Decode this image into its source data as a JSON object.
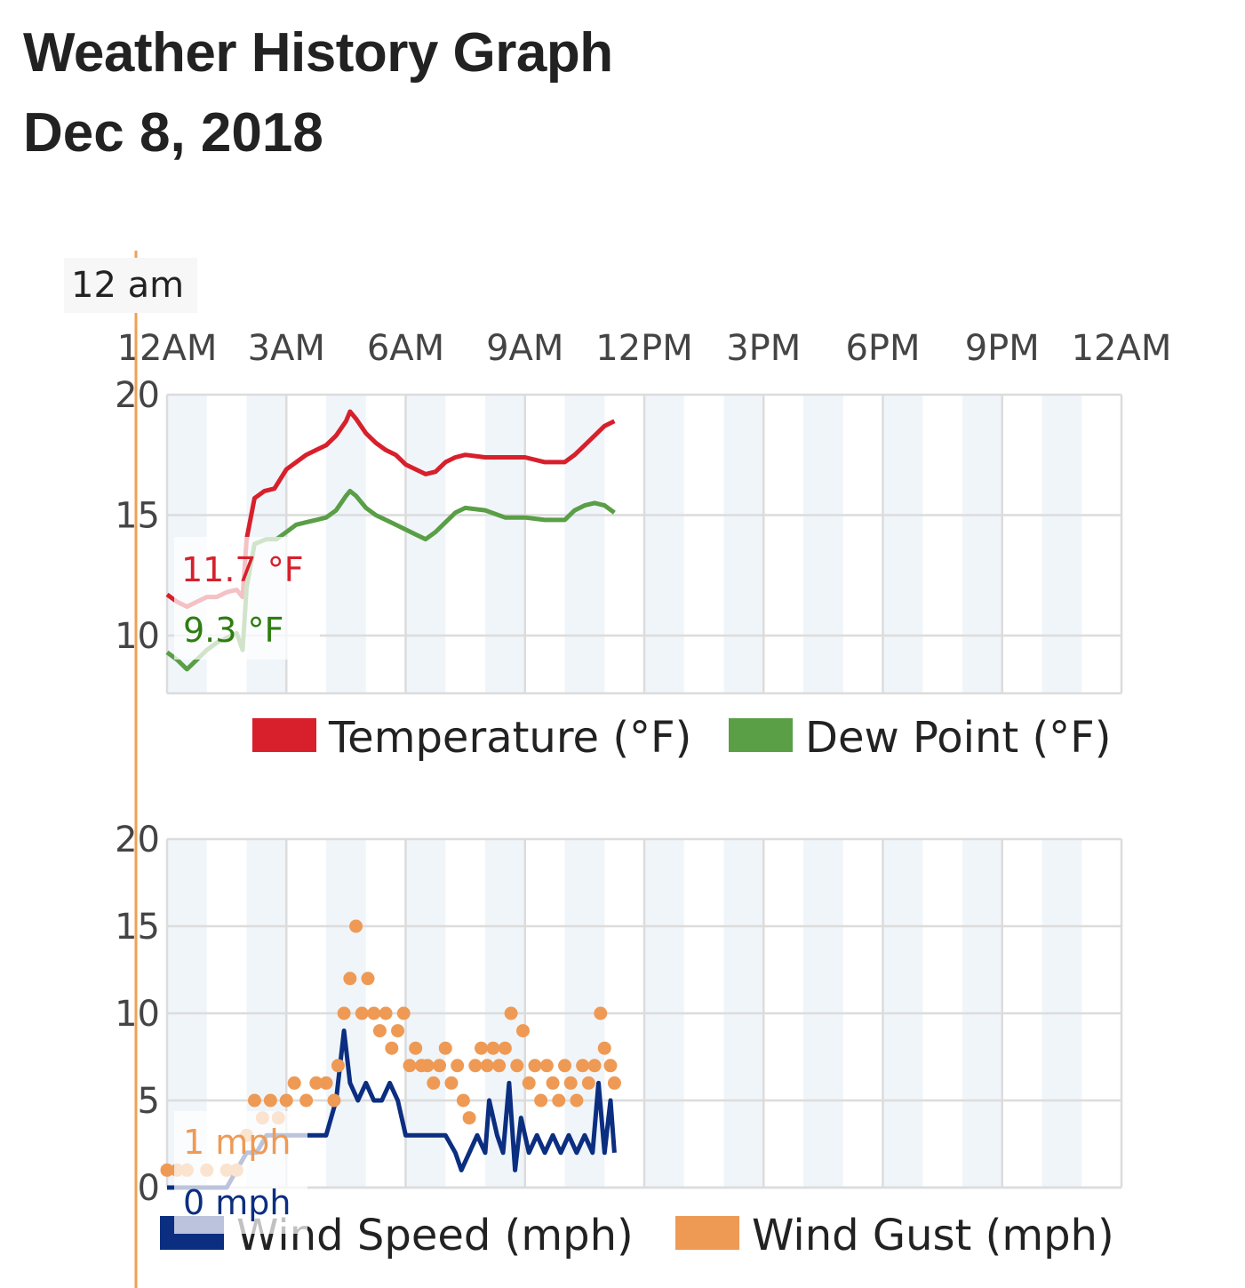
{
  "page": {
    "title": "Weather History Graph",
    "date": "Dec 8, 2018"
  },
  "hover": {
    "time_label": "12 am",
    "temperature_label": "11.7 °F",
    "dew_point_label": "9.3 °F",
    "wind_gust_label": "1 mph",
    "wind_speed_label": "0 mph"
  },
  "colors": {
    "temperature": "#d7202c",
    "dew_point": "#5a9e46",
    "dew_point_text": "#2e7d12",
    "wind_speed": "#0b2e80",
    "wind_gust": "#ee9a55",
    "cursor": "#f0a050",
    "grid": "#dcdcdc",
    "band": "#f0f5fa"
  },
  "chart_data": [
    {
      "type": "line",
      "x_ticks": [
        "12AM",
        "3AM",
        "6AM",
        "9AM",
        "12PM",
        "3PM",
        "6PM",
        "9PM",
        "12AM"
      ],
      "xlim_hours": [
        0,
        24
      ],
      "ylim": [
        7.6,
        20
      ],
      "y_ticks": [
        "20",
        "15",
        "10"
      ],
      "grid": true,
      "legend_position": "bottom",
      "series": [
        {
          "name": "Temperature (°F)",
          "color": "#d7202c",
          "points": [
            [
              0,
              11.7
            ],
            [
              0.25,
              11.4
            ],
            [
              0.5,
              11.2
            ],
            [
              0.75,
              11.4
            ],
            [
              1.0,
              11.6
            ],
            [
              1.25,
              11.6
            ],
            [
              1.5,
              11.8
            ],
            [
              1.75,
              11.9
            ],
            [
              1.9,
              11.6
            ],
            [
              2.0,
              14.0
            ],
            [
              2.2,
              15.7
            ],
            [
              2.45,
              16.0
            ],
            [
              2.7,
              16.1
            ],
            [
              3.0,
              16.9
            ],
            [
              3.25,
              17.2
            ],
            [
              3.5,
              17.5
            ],
            [
              3.75,
              17.7
            ],
            [
              4.0,
              17.9
            ],
            [
              4.25,
              18.3
            ],
            [
              4.5,
              18.9
            ],
            [
              4.6,
              19.3
            ],
            [
              4.75,
              19.0
            ],
            [
              5.0,
              18.4
            ],
            [
              5.25,
              18.0
            ],
            [
              5.5,
              17.7
            ],
            [
              5.75,
              17.5
            ],
            [
              6.0,
              17.1
            ],
            [
              6.25,
              16.9
            ],
            [
              6.5,
              16.7
            ],
            [
              6.75,
              16.8
            ],
            [
              7.0,
              17.2
            ],
            [
              7.25,
              17.4
            ],
            [
              7.5,
              17.5
            ],
            [
              8.0,
              17.4
            ],
            [
              8.5,
              17.4
            ],
            [
              9.0,
              17.4
            ],
            [
              9.5,
              17.2
            ],
            [
              10.0,
              17.2
            ],
            [
              10.25,
              17.5
            ],
            [
              10.5,
              17.9
            ],
            [
              10.75,
              18.3
            ],
            [
              11.0,
              18.7
            ],
            [
              11.25,
              18.9
            ]
          ]
        },
        {
          "name": "Dew Point (°F)",
          "color": "#5a9e46",
          "points": [
            [
              0,
              9.3
            ],
            [
              0.25,
              9.0
            ],
            [
              0.5,
              8.6
            ],
            [
              0.75,
              9.0
            ],
            [
              1.0,
              9.4
            ],
            [
              1.25,
              9.7
            ],
            [
              1.5,
              9.9
            ],
            [
              1.75,
              10.1
            ],
            [
              1.9,
              9.4
            ],
            [
              2.0,
              12.0
            ],
            [
              2.2,
              13.8
            ],
            [
              2.5,
              14.0
            ],
            [
              2.75,
              14.0
            ],
            [
              3.0,
              14.3
            ],
            [
              3.25,
              14.6
            ],
            [
              3.5,
              14.7
            ],
            [
              3.75,
              14.8
            ],
            [
              4.0,
              14.9
            ],
            [
              4.25,
              15.2
            ],
            [
              4.5,
              15.8
            ],
            [
              4.6,
              16.0
            ],
            [
              4.75,
              15.8
            ],
            [
              5.0,
              15.3
            ],
            [
              5.25,
              15.0
            ],
            [
              5.5,
              14.8
            ],
            [
              5.75,
              14.6
            ],
            [
              6.0,
              14.4
            ],
            [
              6.25,
              14.2
            ],
            [
              6.5,
              14.0
            ],
            [
              6.75,
              14.3
            ],
            [
              7.0,
              14.7
            ],
            [
              7.25,
              15.1
            ],
            [
              7.5,
              15.3
            ],
            [
              8.0,
              15.2
            ],
            [
              8.5,
              14.9
            ],
            [
              9.0,
              14.9
            ],
            [
              9.5,
              14.8
            ],
            [
              10.0,
              14.8
            ],
            [
              10.25,
              15.2
            ],
            [
              10.5,
              15.4
            ],
            [
              10.75,
              15.5
            ],
            [
              11.0,
              15.4
            ],
            [
              11.25,
              15.1
            ]
          ]
        }
      ]
    },
    {
      "type": "line",
      "x_ticks": [
        "12AM",
        "3AM",
        "6AM",
        "9AM",
        "12PM",
        "3PM",
        "6PM",
        "9PM",
        "12AM"
      ],
      "xlim_hours": [
        0,
        24
      ],
      "ylim": [
        0,
        20
      ],
      "y_ticks": [
        "20",
        "15",
        "10",
        "5",
        "0"
      ],
      "grid": true,
      "legend_position": "bottom",
      "series": [
        {
          "name": "Wind Speed (mph)",
          "color": "#0b2e80",
          "points": [
            [
              0,
              0
            ],
            [
              0.5,
              0
            ],
            [
              1.0,
              0
            ],
            [
              1.5,
              0
            ],
            [
              1.75,
              1
            ],
            [
              2.0,
              2
            ],
            [
              2.25,
              2
            ],
            [
              2.5,
              3
            ],
            [
              3.0,
              3
            ],
            [
              3.5,
              3
            ],
            [
              3.75,
              3
            ],
            [
              4.0,
              3
            ],
            [
              4.25,
              5
            ],
            [
              4.45,
              9
            ],
            [
              4.6,
              6
            ],
            [
              4.8,
              5
            ],
            [
              5.0,
              6
            ],
            [
              5.2,
              5
            ],
            [
              5.4,
              5
            ],
            [
              5.6,
              6
            ],
            [
              5.8,
              5
            ],
            [
              6.0,
              3
            ],
            [
              6.5,
              3
            ],
            [
              7.0,
              3
            ],
            [
              7.25,
              2
            ],
            [
              7.4,
              1
            ],
            [
              7.6,
              2
            ],
            [
              7.8,
              3
            ],
            [
              8.0,
              2
            ],
            [
              8.1,
              5
            ],
            [
              8.3,
              3
            ],
            [
              8.45,
              2
            ],
            [
              8.6,
              6
            ],
            [
              8.75,
              1
            ],
            [
              8.9,
              4
            ],
            [
              9.1,
              2
            ],
            [
              9.3,
              3
            ],
            [
              9.5,
              2
            ],
            [
              9.7,
              3
            ],
            [
              9.9,
              2
            ],
            [
              10.1,
              3
            ],
            [
              10.3,
              2
            ],
            [
              10.5,
              3
            ],
            [
              10.7,
              2
            ],
            [
              10.85,
              6
            ],
            [
              11.0,
              2
            ],
            [
              11.15,
              5
            ],
            [
              11.25,
              2
            ]
          ]
        },
        {
          "name": "Wind Gust (mph)",
          "color": "#ee9a55",
          "scatter": true,
          "points": [
            [
              0,
              1
            ],
            [
              0.25,
              1
            ],
            [
              0.5,
              1
            ],
            [
              1.0,
              1
            ],
            [
              1.5,
              1
            ],
            [
              1.75,
              1
            ],
            [
              2.0,
              3
            ],
            [
              2.2,
              5
            ],
            [
              2.4,
              4
            ],
            [
              2.6,
              5
            ],
            [
              2.8,
              4
            ],
            [
              3.0,
              5
            ],
            [
              3.2,
              6
            ],
            [
              3.5,
              5
            ],
            [
              3.75,
              6
            ],
            [
              4.0,
              6
            ],
            [
              4.2,
              5
            ],
            [
              4.3,
              7
            ],
            [
              4.45,
              10
            ],
            [
              4.6,
              12
            ],
            [
              4.75,
              15
            ],
            [
              4.9,
              10
            ],
            [
              5.05,
              12
            ],
            [
              5.2,
              10
            ],
            [
              5.35,
              9
            ],
            [
              5.5,
              10
            ],
            [
              5.65,
              8
            ],
            [
              5.8,
              9
            ],
            [
              5.95,
              10
            ],
            [
              6.1,
              7
            ],
            [
              6.25,
              8
            ],
            [
              6.4,
              7
            ],
            [
              6.55,
              7
            ],
            [
              6.7,
              6
            ],
            [
              6.85,
              7
            ],
            [
              7.0,
              8
            ],
            [
              7.15,
              6
            ],
            [
              7.3,
              7
            ],
            [
              7.45,
              5
            ],
            [
              7.6,
              4
            ],
            [
              7.75,
              7
            ],
            [
              7.9,
              8
            ],
            [
              8.05,
              7
            ],
            [
              8.2,
              8
            ],
            [
              8.35,
              7
            ],
            [
              8.5,
              8
            ],
            [
              8.65,
              10
            ],
            [
              8.8,
              7
            ],
            [
              8.95,
              9
            ],
            [
              9.1,
              6
            ],
            [
              9.25,
              7
            ],
            [
              9.4,
              5
            ],
            [
              9.55,
              7
            ],
            [
              9.7,
              6
            ],
            [
              9.85,
              5
            ],
            [
              10.0,
              7
            ],
            [
              10.15,
              6
            ],
            [
              10.3,
              5
            ],
            [
              10.45,
              7
            ],
            [
              10.6,
              6
            ],
            [
              10.75,
              7
            ],
            [
              10.9,
              10
            ],
            [
              11.0,
              8
            ],
            [
              11.15,
              7
            ],
            [
              11.25,
              6
            ]
          ]
        }
      ]
    }
  ]
}
